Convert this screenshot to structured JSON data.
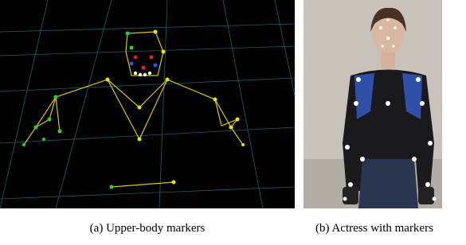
{
  "figures": [
    {
      "caption": "(a) Upper-body markers"
    },
    {
      "caption": "(b) Actress with markers"
    }
  ]
}
